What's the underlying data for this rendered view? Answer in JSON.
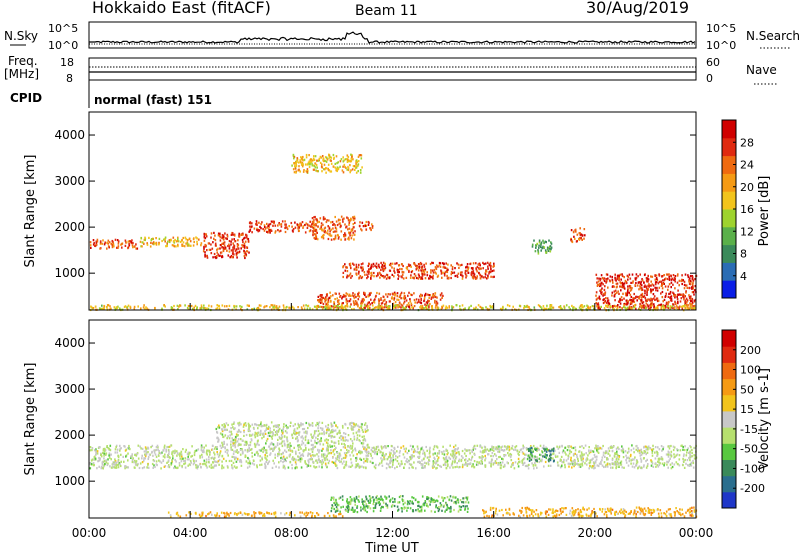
{
  "header": {
    "title": "Hokkaido East (fitACF)",
    "beam": "Beam 11",
    "date": "30/Aug/2019"
  },
  "noise_panel": {
    "left_label_1": "N.Sky",
    "left_ticks": [
      "10^5",
      "10^0"
    ],
    "right_ticks": [
      "10^5",
      "10^0"
    ],
    "right_label": "N.Search"
  },
  "freq_panel": {
    "left_label_1": "Freq.",
    "left_label_2": "[MHz]",
    "left_ticks": [
      "18",
      "8"
    ],
    "right_ticks": [
      "60",
      "0"
    ],
    "right_label": "Nave"
  },
  "cpid_panel": {
    "label": "CPID",
    "text": "normal (fast) 151"
  },
  "chart_data": [
    {
      "type": "heatmap",
      "ylabel": "Slant Range [km]",
      "y_ticks": [
        "1000",
        "2000",
        "3000",
        "4000"
      ],
      "colorbar": {
        "label": "Power [dB]",
        "ticks": [
          "4",
          "8",
          "12",
          "16",
          "20",
          "24",
          "28"
        ],
        "colors": [
          "#0a1ee6",
          "#2a6cb4",
          "#3a8a5a",
          "#5ab04a",
          "#9ed32e",
          "#f2c41c",
          "#f59a14",
          "#ef6a10",
          "#e02a10",
          "#d00000"
        ]
      },
      "scatter_regions_power": [
        {
          "t0": 0.0,
          "t1": 1.9,
          "r0": 1550,
          "r1": 1750,
          "level": 0.82
        },
        {
          "t0": 2.0,
          "t1": 4.5,
          "r0": 1600,
          "r1": 1800,
          "level": 0.62
        },
        {
          "t0": 4.5,
          "t1": 6.3,
          "r0": 1350,
          "r1": 1900,
          "level": 0.88
        },
        {
          "t0": 6.3,
          "t1": 9.0,
          "r0": 1900,
          "r1": 2150,
          "level": 0.85
        },
        {
          "t0": 8.8,
          "t1": 10.5,
          "r0": 1750,
          "r1": 2250,
          "level": 0.78
        },
        {
          "t0": 10.6,
          "t1": 11.2,
          "r0": 1950,
          "r1": 2150,
          "level": 0.8
        },
        {
          "t0": 10.0,
          "t1": 16.0,
          "r0": 900,
          "r1": 1250,
          "level": 0.86
        },
        {
          "t0": 9.0,
          "t1": 14.0,
          "r0": 250,
          "r1": 600,
          "level": 0.82
        },
        {
          "t0": 19.0,
          "t1": 19.6,
          "r0": 1700,
          "r1": 2000,
          "level": 0.85
        },
        {
          "t0": 20.0,
          "t1": 24.0,
          "r0": 250,
          "r1": 1000,
          "level": 0.9
        },
        {
          "t0": 8.0,
          "t1": 10.8,
          "r0": 3200,
          "r1": 3600,
          "level": 0.6
        },
        {
          "t0": 17.5,
          "t1": 18.3,
          "r0": 1450,
          "r1": 1750,
          "level": 0.3
        },
        {
          "t0": 0.0,
          "t1": 24.0,
          "r0": 220,
          "r1": 330,
          "level": 0.55
        }
      ]
    },
    {
      "type": "heatmap",
      "ylabel": "Slant Range [km]",
      "y_ticks": [
        "1000",
        "2000",
        "3000",
        "4000"
      ],
      "colorbar": {
        "label": "Velocity [m s-1]",
        "ticks": [
          "200",
          "100",
          "50",
          "15",
          "-15",
          "-50",
          "-100",
          "-200"
        ],
        "colors": [
          "#1f37c8",
          "#2a6e8e",
          "#3a8a5a",
          "#58c840",
          "#b6e06e",
          "#c8c8c8",
          "#f2c41c",
          "#f59a14",
          "#ef6a10",
          "#e02a10",
          "#d00000"
        ]
      },
      "scatter_regions_velocity": [
        {
          "t0": 0.0,
          "t1": 24.0,
          "r0": 1300,
          "r1": 1800,
          "level": 0.45
        },
        {
          "t0": 5.0,
          "t1": 11.0,
          "r0": 1800,
          "r1": 2300,
          "level": 0.45
        },
        {
          "t0": 17.3,
          "t1": 18.4,
          "r0": 1450,
          "r1": 1750,
          "level": 0.2
        },
        {
          "t0": 9.5,
          "t1": 15.0,
          "r0": 350,
          "r1": 700,
          "level": 0.3
        },
        {
          "t0": 3.0,
          "t1": 10.0,
          "r0": 250,
          "r1": 350,
          "level": 0.65
        },
        {
          "t0": 15.5,
          "t1": 24.0,
          "r0": 250,
          "r1": 450,
          "level": 0.65
        }
      ]
    }
  ],
  "xaxis": {
    "ticks": [
      "00:00",
      "04:00",
      "08:00",
      "12:00",
      "16:00",
      "20:00",
      "00:00"
    ],
    "label": "Time UT"
  }
}
